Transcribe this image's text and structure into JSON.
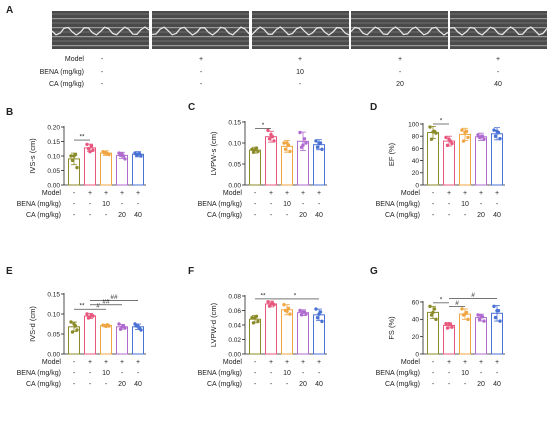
{
  "panel_a": {
    "letter": "A",
    "treat_labels": [
      "Model",
      "BENA (mg/kg)",
      "CA (mg/kg)"
    ],
    "cols": [
      [
        "-",
        "-",
        "-"
      ],
      [
        "+",
        "-",
        "-"
      ],
      [
        "+",
        "10",
        "-"
      ],
      [
        "+",
        "-",
        "20"
      ],
      [
        "+",
        "-",
        "40"
      ]
    ]
  },
  "treat_labels": [
    "Model",
    "BENA (mg/kg)",
    "CA (mg/kg)"
  ],
  "treat_rows": [
    [
      "-",
      "+",
      "+",
      "+",
      "+"
    ],
    [
      "-",
      "-",
      "10",
      "-",
      "-"
    ],
    [
      "-",
      "-",
      "-",
      "20",
      "40"
    ]
  ],
  "colors": [
    "#8b8b2a",
    "#e8577d",
    "#f0a642",
    "#b06bcf",
    "#4a71d4"
  ],
  "chart_data": [
    {
      "type": "bar",
      "letter": "B",
      "ylabel": "IVS-s (cm)",
      "ylim": [
        0,
        0.2
      ],
      "ticks": [
        "0.00",
        "0.05",
        "0.10",
        "0.15",
        "0.20"
      ],
      "values": [
        0.09,
        0.128,
        0.11,
        0.102,
        0.106
      ],
      "errors": [
        0.02,
        0.013,
        0.008,
        0.011,
        0.009
      ],
      "points": [
        [
          0.1,
          0.06,
          0.085,
          0.105,
          0.1
        ],
        [
          0.14,
          0.12,
          0.125,
          0.135,
          0.115
        ],
        [
          0.115,
          0.105,
          0.11,
          0.108,
          0.112
        ],
        [
          0.11,
          0.09,
          0.102,
          0.1,
          0.108
        ],
        [
          0.11,
          0.1,
          0.104,
          0.108,
          0.106
        ]
      ],
      "sig": [
        {
          "from": 0,
          "to": 1,
          "label": "**",
          "y": 0.155
        }
      ]
    },
    {
      "type": "bar",
      "letter": "C",
      "ylabel": "LVPW-s (cm)",
      "ylim": [
        0,
        0.15
      ],
      "ticks": [
        "0.00",
        "0.05",
        "0.10",
        "0.15"
      ],
      "values": [
        0.083,
        0.115,
        0.092,
        0.104,
        0.096
      ],
      "errors": [
        0.007,
        0.013,
        0.014,
        0.022,
        0.012
      ],
      "points": [
        [
          0.085,
          0.08,
          0.078,
          0.088,
          0.084
        ],
        [
          0.13,
          0.105,
          0.11,
          0.115,
          0.12
        ],
        [
          0.1,
          0.08,
          0.085,
          0.095,
          0.1
        ],
        [
          0.125,
          0.1,
          0.09,
          0.11,
          0.095
        ],
        [
          0.105,
          0.085,
          0.09,
          0.1,
          0.1
        ]
      ],
      "sig": [
        {
          "from": 0,
          "to": 1,
          "label": "*",
          "y": 0.135
        }
      ]
    },
    {
      "type": "bar",
      "letter": "D",
      "ylabel": "EF (%)",
      "ylim": [
        0,
        100
      ],
      "ticks": [
        "0",
        "20",
        "40",
        "60",
        "80",
        "100"
      ],
      "values": [
        86,
        72,
        83,
        79,
        84
      ],
      "errors": [
        10,
        8,
        10,
        6,
        10
      ],
      "points": [
        [
          95,
          85,
          75,
          88,
          87
        ],
        [
          78,
          68,
          65,
          72,
          75
        ],
        [
          90,
          78,
          72,
          88,
          86
        ],
        [
          82,
          75,
          78,
          80,
          79
        ],
        [
          90,
          76,
          80,
          86,
          88
        ]
      ],
      "sig": [
        {
          "from": 0,
          "to": 1,
          "label": "*",
          "y": 100
        }
      ]
    },
    {
      "type": "bar",
      "letter": "E",
      "ylabel": "IVS-d (cm)",
      "ylim": [
        0,
        0.15
      ],
      "ticks": [
        "0.00",
        "0.05",
        "0.10",
        "0.15"
      ],
      "values": [
        0.068,
        0.095,
        0.071,
        0.068,
        0.068
      ],
      "errors": [
        0.012,
        0.006,
        0.003,
        0.006,
        0.007
      ],
      "points": [
        [
          0.08,
          0.06,
          0.055,
          0.07,
          0.075
        ],
        [
          0.1,
          0.095,
          0.09,
          0.098,
          0.092
        ],
        [
          0.072,
          0.07,
          0.071,
          0.073,
          0.069
        ],
        [
          0.075,
          0.065,
          0.062,
          0.07,
          0.068
        ],
        [
          0.075,
          0.06,
          0.07,
          0.065,
          0.07
        ]
      ],
      "sig": [
        {
          "from": 0,
          "to": 1,
          "label": "**",
          "y": 0.112
        },
        {
          "from": 1,
          "to": 2,
          "label": "#",
          "y": 0.112
        },
        {
          "from": 1,
          "to": 3,
          "label": "##",
          "y": 0.123
        },
        {
          "from": 1,
          "to": 4,
          "label": "##",
          "y": 0.134
        }
      ]
    },
    {
      "type": "bar",
      "letter": "F",
      "ylabel": "LVPW-d (cm)",
      "ylim": [
        0,
        0.08
      ],
      "ticks": [
        "0.00",
        "0.02",
        "0.04",
        "0.06",
        "0.08"
      ],
      "values": [
        0.048,
        0.069,
        0.061,
        0.057,
        0.054
      ],
      "errors": [
        0.005,
        0.004,
        0.007,
        0.004,
        0.008
      ],
      "points": [
        [
          0.05,
          0.045,
          0.043,
          0.052,
          0.05
        ],
        [
          0.072,
          0.068,
          0.066,
          0.07,
          0.069
        ],
        [
          0.068,
          0.055,
          0.06,
          0.063,
          0.059
        ],
        [
          0.06,
          0.055,
          0.054,
          0.058,
          0.058
        ],
        [
          0.062,
          0.045,
          0.05,
          0.058,
          0.055
        ]
      ],
      "sig": [
        {
          "from": 0,
          "to": 1,
          "label": "**",
          "y": 0.076
        },
        {
          "from": 1,
          "to": 4,
          "label": "*",
          "y": 0.076
        }
      ]
    },
    {
      "type": "bar",
      "letter": "G",
      "ylabel": "FS (%)",
      "ylim": [
        0,
        60
      ],
      "ticks": [
        "0",
        "20",
        "40",
        "60"
      ],
      "values": [
        48,
        33,
        46,
        42,
        47
      ],
      "errors": [
        7,
        3,
        6,
        4,
        9
      ],
      "points": [
        [
          55,
          40,
          45,
          52,
          48
        ],
        [
          35,
          31,
          30,
          34,
          35
        ],
        [
          52,
          40,
          45,
          48,
          46
        ],
        [
          45,
          38,
          40,
          43,
          44
        ],
        [
          55,
          38,
          42,
          50,
          50
        ]
      ],
      "sig": [
        {
          "from": 0,
          "to": 1,
          "label": "*",
          "y": 59
        },
        {
          "from": 1,
          "to": 2,
          "label": "#",
          "y": 55
        },
        {
          "from": 1,
          "to": 4,
          "label": "#",
          "y": 64
        }
      ]
    }
  ]
}
